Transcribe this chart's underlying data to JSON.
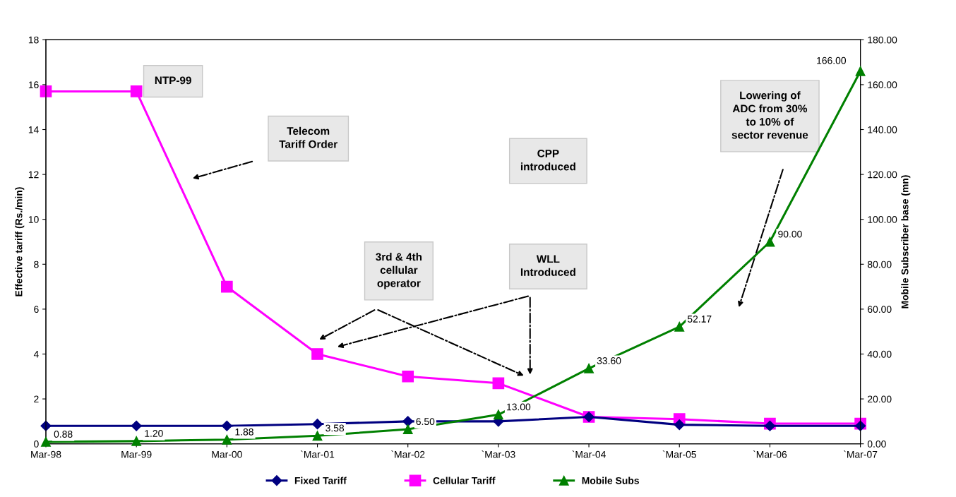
{
  "chart_data": {
    "type": "line",
    "categories": [
      "Mar-98",
      "Mar-99",
      "Mar-00",
      "`Mar-01",
      "`Mar-02",
      "`Mar-03",
      "`Mar-04",
      "`Mar-05",
      "`Mar-06",
      "`Mar-07"
    ],
    "ylabel": "Effective tariff (Rs./min)",
    "y2label": "Mobile Subscriber base (mn)",
    "ylim": [
      0,
      18
    ],
    "yticks": [
      0,
      2,
      4,
      6,
      8,
      10,
      12,
      14,
      16,
      18
    ],
    "y2lim": [
      0,
      180
    ],
    "y2ticks": [
      {
        "value": 0,
        "label": "0.00"
      },
      {
        "value": 20,
        "label": "20.00"
      },
      {
        "value": 40,
        "label": "40.00"
      },
      {
        "value": 60,
        "label": "60.00"
      },
      {
        "value": 80,
        "label": "80.00"
      },
      {
        "value": 100,
        "label": "100.00"
      },
      {
        "value": 120,
        "label": "120.00"
      },
      {
        "value": 140,
        "label": "140.00"
      },
      {
        "value": 160,
        "label": "160.00"
      },
      {
        "value": 180,
        "label": "180.00"
      }
    ],
    "series": [
      {
        "name": "Fixed Tariff",
        "color": "#000080",
        "marker": "diamond",
        "values": [
          0.8,
          0.8,
          0.8,
          0.88,
          1.0,
          1.0,
          1.2,
          0.85,
          0.8,
          0.8
        ]
      },
      {
        "name": "Cellular Tariff",
        "color": "#ff00ff",
        "marker": "square",
        "values": [
          15.7,
          15.7,
          7.0,
          4.0,
          3.0,
          2.7,
          1.2,
          1.1,
          0.9,
          0.9
        ]
      },
      {
        "name": "Mobile Subs",
        "color": "#008000",
        "marker": "triangle",
        "axis": "y2",
        "values": [
          0.88,
          1.2,
          1.88,
          3.58,
          6.5,
          13.0,
          33.6,
          52.17,
          90.0,
          166.0
        ],
        "value_labels": [
          "0.88",
          "1.20",
          "1.88",
          "3.58",
          "6.50",
          "13.00",
          "33.60",
          "52.17",
          "90.00",
          "166.00"
        ]
      }
    ],
    "annotations": [
      "NTP-99",
      "Telecom\nTariff Order",
      "CPP\nintroduced",
      "3rd & 4th\ncellular\noperator",
      "WLL\nIntroduced",
      "Lowering of\nADC from 30%\nto 10% of\nsector revenue"
    ],
    "legend": "bottom",
    "grid": false,
    "line_style": "solid"
  }
}
